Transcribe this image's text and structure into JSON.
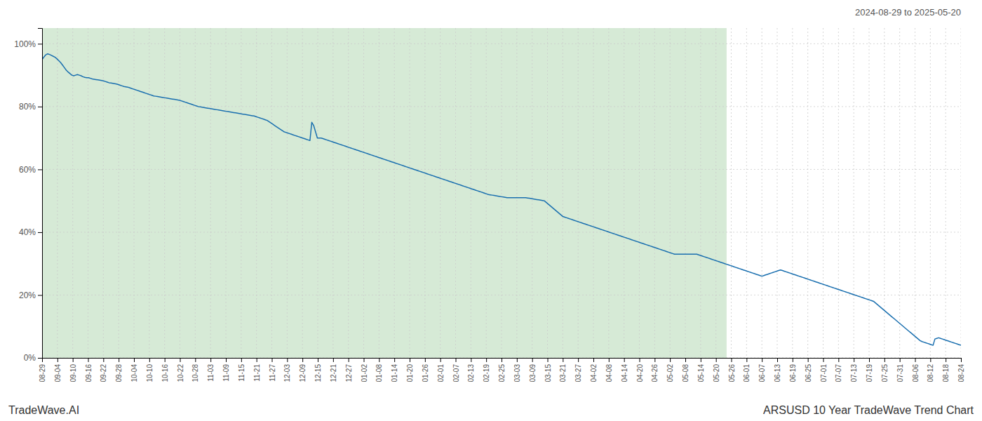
{
  "chart_data": {
    "type": "line",
    "title": "ARSUSD 10 Year TradeWave Trend Chart",
    "subtitle": "2024-08-29 to 2025-05-20",
    "annotations": [
      "TradeWave.AI"
    ],
    "color": "#1a6faf",
    "grid": true,
    "shaded": {
      "x": [
        0,
        368
      ],
      "color": "#d6ead6"
    },
    "xlim": [
      0,
      494
    ],
    "xticks": [
      {
        "value": 0,
        "label": "08-29"
      },
      {
        "value": 8.233333333333333,
        "label": "09-04"
      },
      {
        "value": 16.46666666666667,
        "label": "09-10"
      },
      {
        "value": 24.7,
        "label": "09-16"
      },
      {
        "value": 32.93333333333333,
        "label": "09-22"
      },
      {
        "value": 41.16666666666667,
        "label": "09-28"
      },
      {
        "value": 49.4,
        "label": "10-04"
      },
      {
        "value": 57.63333333333333,
        "label": "10-10"
      },
      {
        "value": 65.86666666666667,
        "label": "10-16"
      },
      {
        "value": 74.1,
        "label": "10-22"
      },
      {
        "value": 82.33333333333333,
        "label": "10-28"
      },
      {
        "value": 90.56666666666668,
        "label": "11-03"
      },
      {
        "value": 98.8,
        "label": "11-09"
      },
      {
        "value": 107.03333333333333,
        "label": "11-15"
      },
      {
        "value": 115.26666666666667,
        "label": "11-21"
      },
      {
        "value": 123.5,
        "label": "11-27"
      },
      {
        "value": 131.73333333333332,
        "label": "12-03"
      },
      {
        "value": 139.96666666666667,
        "label": "12-09"
      },
      {
        "value": 148.2,
        "label": "12-15"
      },
      {
        "value": 156.43333333333334,
        "label": "12-21"
      },
      {
        "value": 164.66666666666666,
        "label": "12-27"
      },
      {
        "value": 172.9,
        "label": "01-02"
      },
      {
        "value": 181.13333333333333,
        "label": "01-08"
      },
      {
        "value": 189.36666666666667,
        "label": "01-14"
      },
      {
        "value": 197.6,
        "label": "01-20"
      },
      {
        "value": 205.83333333333334,
        "label": "01-26"
      },
      {
        "value": 214.06666666666666,
        "label": "02-01"
      },
      {
        "value": 222.3,
        "label": "02-07"
      },
      {
        "value": 230.53333333333333,
        "label": "02-13"
      },
      {
        "value": 238.76666666666668,
        "label": "02-19"
      },
      {
        "value": 247,
        "label": "02-25"
      },
      {
        "value": 255.23333333333332,
        "label": "03-03"
      },
      {
        "value": 263.46666666666664,
        "label": "03-09"
      },
      {
        "value": 271.7,
        "label": "03-15"
      },
      {
        "value": 279.93333333333334,
        "label": "03-21"
      },
      {
        "value": 288.1666666666667,
        "label": "03-27"
      },
      {
        "value": 296.4,
        "label": "04-02"
      },
      {
        "value": 304.6333333333333,
        "label": "04-08"
      },
      {
        "value": 312.8666666666667,
        "label": "04-14"
      },
      {
        "value": 321.1,
        "label": "04-20"
      },
      {
        "value": 329.3333333333333,
        "label": "04-26"
      },
      {
        "value": 337.56666666666666,
        "label": "05-02"
      },
      {
        "value": 345.8,
        "label": "05-08"
      },
      {
        "value": 354.0333333333333,
        "label": "05-14"
      },
      {
        "value": 362.26666666666665,
        "label": "05-20"
      },
      {
        "value": 370.5,
        "label": "05-26"
      },
      {
        "value": 378.73333333333335,
        "label": "06-01"
      },
      {
        "value": 386.96666666666664,
        "label": "06-07"
      },
      {
        "value": 395.2,
        "label": "06-13"
      },
      {
        "value": 403.43333333333334,
        "label": "06-19"
      },
      {
        "value": 411.6666666666667,
        "label": "06-25"
      },
      {
        "value": 419.9,
        "label": "07-01"
      },
      {
        "value": 428.1333333333333,
        "label": "07-07"
      },
      {
        "value": 436.3666666666667,
        "label": "07-13"
      },
      {
        "value": 444.6,
        "label": "07-19"
      },
      {
        "value": 452.8333333333333,
        "label": "07-25"
      },
      {
        "value": 461.06666666666666,
        "label": "07-31"
      },
      {
        "value": 469.3,
        "label": "08-06"
      },
      {
        "value": 477.53333333333336,
        "label": "08-12"
      },
      {
        "value": 485.76666666666665,
        "label": "08-18"
      },
      {
        "value": 494,
        "label": "08-24"
      }
    ],
    "ylim": [
      0,
      1.05
    ],
    "yticks": [
      {
        "value": 0,
        "label": "0%"
      },
      {
        "value": 0.2,
        "label": "20%"
      },
      {
        "value": 0.4,
        "label": "40%"
      },
      {
        "value": 0.6,
        "label": "60%"
      },
      {
        "value": 0.8,
        "label": "80%"
      },
      {
        "value": 1.0,
        "label": "100%"
      }
    ],
    "values": [
      0.95,
      0.958,
      0.965,
      0.968,
      0.966,
      0.963,
      0.96,
      0.957,
      0.952,
      0.946,
      0.94,
      0.932,
      0.924,
      0.916,
      0.91,
      0.905,
      0.9,
      0.898,
      0.9,
      0.902,
      0.9,
      0.898,
      0.895,
      0.893,
      0.892,
      0.892,
      0.89,
      0.888,
      0.887,
      0.886,
      0.885,
      0.884,
      0.883,
      0.882,
      0.88,
      0.878,
      0.876,
      0.875,
      0.874,
      0.873,
      0.872,
      0.87,
      0.868,
      0.866,
      0.864,
      0.863,
      0.862,
      0.86,
      0.858,
      0.856,
      0.854,
      0.852,
      0.85,
      0.848,
      0.846,
      0.844,
      0.842,
      0.84,
      0.838,
      0.836,
      0.834,
      0.833,
      0.832,
      0.831,
      0.83,
      0.829,
      0.828,
      0.827,
      0.826,
      0.825,
      0.824,
      0.823,
      0.822,
      0.821,
      0.82,
      0.818,
      0.816,
      0.814,
      0.812,
      0.81,
      0.808,
      0.806,
      0.804,
      0.802,
      0.8,
      0.799,
      0.798,
      0.797,
      0.796,
      0.795,
      0.794,
      0.793,
      0.792,
      0.791,
      0.79,
      0.789,
      0.788,
      0.787,
      0.786,
      0.785,
      0.784,
      0.783,
      0.782,
      0.781,
      0.78,
      0.779,
      0.778,
      0.777,
      0.776,
      0.775,
      0.774,
      0.773,
      0.772,
      0.771,
      0.77,
      0.768,
      0.766,
      0.764,
      0.762,
      0.76,
      0.758,
      0.756,
      0.752,
      0.748,
      0.744,
      0.74,
      0.736,
      0.732,
      0.728,
      0.724,
      0.72,
      0.718,
      0.716,
      0.714,
      0.712,
      0.71,
      0.708,
      0.706,
      0.704,
      0.702,
      0.7,
      0.698,
      0.696,
      0.694,
      0.692,
      0.75,
      0.74,
      0.72,
      0.7,
      0.7,
      0.7,
      0.698,
      0.696,
      0.694,
      0.692,
      0.69,
      0.688,
      0.686,
      0.684,
      0.682,
      0.68,
      0.678,
      0.676,
      0.674,
      0.672,
      0.67,
      0.668,
      0.666,
      0.664,
      0.662,
      0.66,
      0.658,
      0.656,
      0.654,
      0.652,
      0.65,
      0.648,
      0.646,
      0.644,
      0.642,
      0.64,
      0.638,
      0.636,
      0.634,
      0.632,
      0.63,
      0.628,
      0.626,
      0.624,
      0.622,
      0.62,
      0.618,
      0.616,
      0.614,
      0.612,
      0.61,
      0.608,
      0.606,
      0.604,
      0.602,
      0.6,
      0.598,
      0.596,
      0.594,
      0.592,
      0.59,
      0.588,
      0.586,
      0.584,
      0.582,
      0.58,
      0.578,
      0.576,
      0.574,
      0.572,
      0.57,
      0.568,
      0.566,
      0.564,
      0.562,
      0.56,
      0.558,
      0.556,
      0.554,
      0.552,
      0.55,
      0.548,
      0.546,
      0.544,
      0.542,
      0.54,
      0.538,
      0.536,
      0.534,
      0.532,
      0.53,
      0.528,
      0.526,
      0.524,
      0.522,
      0.52,
      0.519,
      0.518,
      0.517,
      0.516,
      0.515,
      0.514,
      0.513,
      0.512,
      0.511,
      0.51,
      0.51,
      0.51,
      0.51,
      0.51,
      0.51,
      0.51,
      0.51,
      0.51,
      0.51,
      0.51,
      0.509,
      0.508,
      0.507,
      0.506,
      0.505,
      0.504,
      0.503,
      0.502,
      0.501,
      0.5,
      0.495,
      0.49,
      0.485,
      0.48,
      0.475,
      0.47,
      0.465,
      0.46,
      0.455,
      0.45,
      0.448,
      0.446,
      0.444,
      0.442,
      0.44,
      0.438,
      0.436,
      0.434,
      0.432,
      0.43,
      0.428,
      0.426,
      0.424,
      0.422,
      0.42,
      0.418,
      0.416,
      0.414,
      0.412,
      0.41,
      0.408,
      0.406,
      0.404,
      0.402,
      0.4,
      0.398,
      0.396,
      0.394,
      0.392,
      0.39,
      0.388,
      0.386,
      0.384,
      0.382,
      0.38,
      0.378,
      0.376,
      0.374,
      0.372,
      0.37,
      0.368,
      0.366,
      0.364,
      0.362,
      0.36,
      0.358,
      0.356,
      0.354,
      0.352,
      0.35,
      0.348,
      0.346,
      0.344,
      0.342,
      0.34,
      0.338,
      0.336,
      0.334,
      0.332,
      0.33,
      0.33,
      0.33,
      0.33,
      0.33,
      0.33,
      0.33,
      0.33,
      0.33,
      0.33,
      0.33,
      0.33,
      0.33,
      0.328,
      0.326,
      0.324,
      0.322,
      0.32,
      0.318,
      0.316,
      0.314,
      0.312,
      0.31,
      0.308,
      0.306,
      0.304,
      0.302,
      0.3,
      0.298,
      0.296,
      0.294,
      0.292,
      0.29,
      0.288,
      0.286,
      0.284,
      0.282,
      0.28,
      0.278,
      0.276,
      0.274,
      0.272,
      0.27,
      0.268,
      0.266,
      0.264,
      0.262,
      0.26,
      0.262,
      0.264,
      0.266,
      0.268,
      0.27,
      0.272,
      0.274,
      0.276,
      0.278,
      0.28,
      0.278,
      0.276,
      0.274,
      0.272,
      0.27,
      0.268,
      0.266,
      0.264,
      0.262,
      0.26,
      0.258,
      0.256,
      0.254,
      0.252,
      0.25,
      0.248,
      0.246,
      0.244,
      0.242,
      0.24,
      0.238,
      0.236,
      0.234,
      0.232,
      0.23,
      0.228,
      0.226,
      0.224,
      0.222,
      0.22,
      0.218,
      0.216,
      0.214,
      0.212,
      0.21,
      0.208,
      0.206,
      0.204,
      0.202,
      0.2,
      0.198,
      0.196,
      0.194,
      0.192,
      0.19,
      0.188,
      0.186,
      0.184,
      0.182,
      0.18,
      0.175,
      0.17,
      0.165,
      0.16,
      0.155,
      0.15,
      0.145,
      0.14,
      0.135,
      0.13,
      0.125,
      0.12,
      0.115,
      0.11,
      0.105,
      0.1,
      0.095,
      0.09,
      0.085,
      0.08,
      0.075,
      0.07,
      0.065,
      0.06,
      0.055,
      0.052,
      0.05,
      0.048,
      0.046,
      0.044,
      0.042,
      0.04,
      0.06,
      0.062,
      0.064,
      0.062,
      0.06,
      0.058,
      0.056,
      0.054,
      0.052,
      0.05,
      0.048,
      0.046,
      0.044,
      0.042,
      0.04
    ]
  }
}
